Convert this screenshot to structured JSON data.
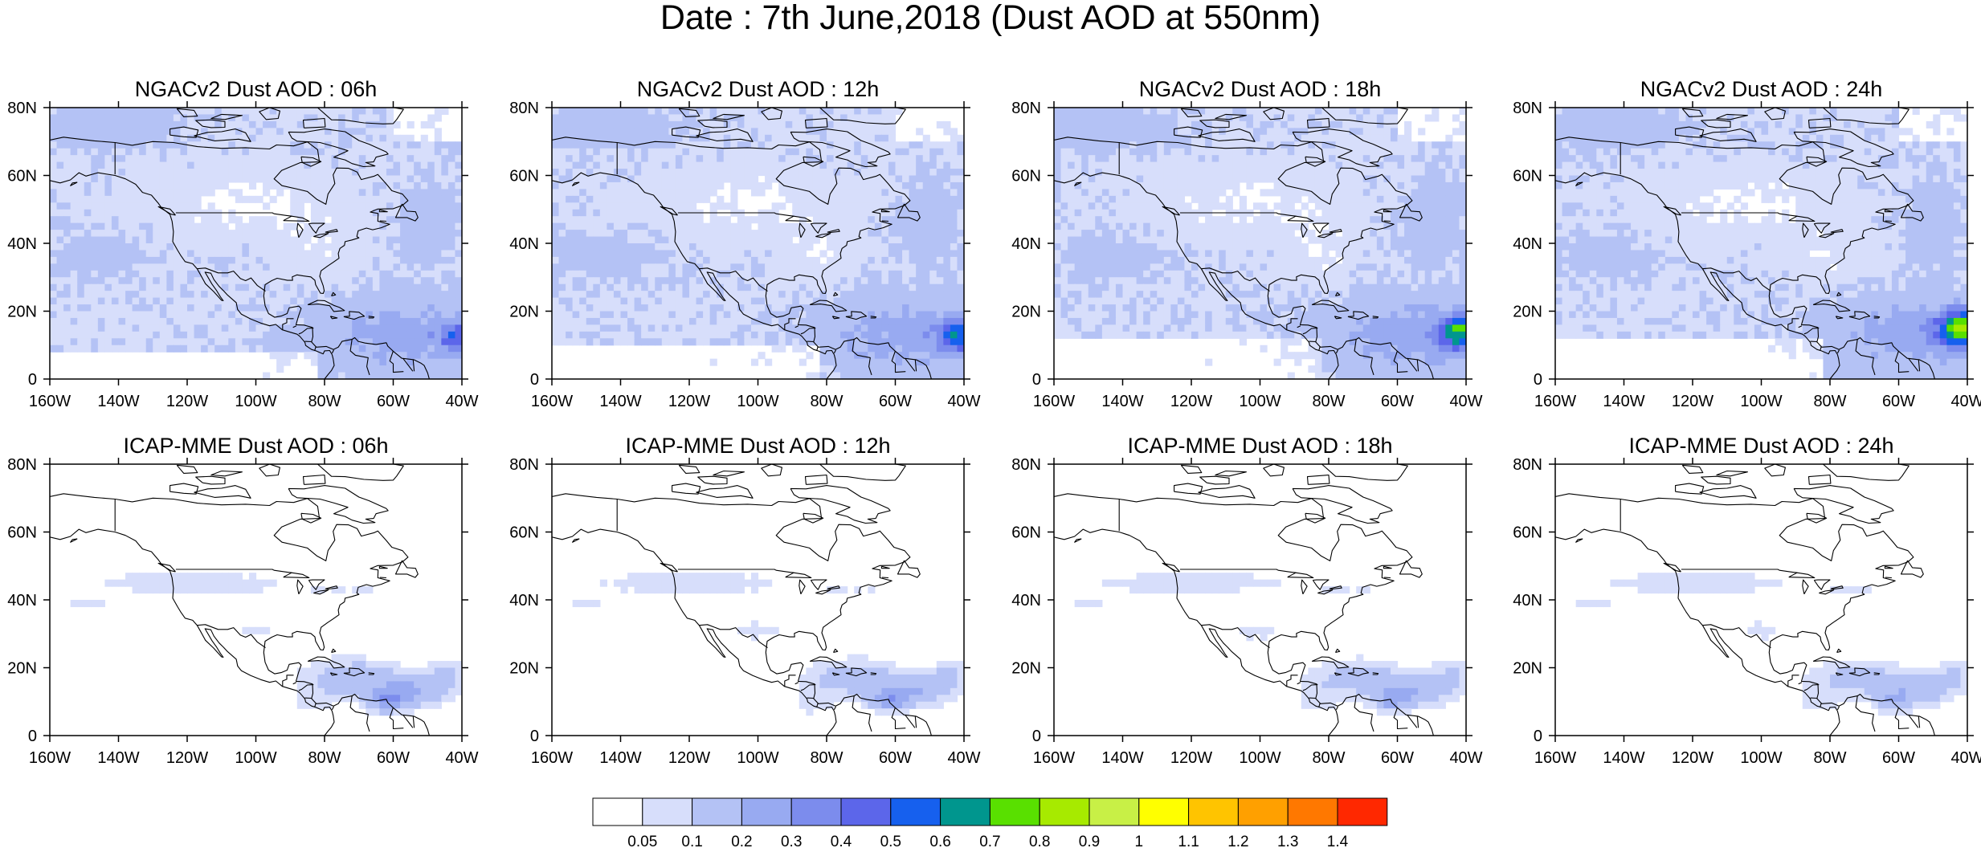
{
  "title": "Date : 7th June,2018 (Dust AOD at 550nm)",
  "panels": [
    {
      "title": "NGACv2 Dust AOD : 06h",
      "model": "ngac",
      "lead": 6
    },
    {
      "title": "NGACv2 Dust AOD : 12h",
      "model": "ngac",
      "lead": 12
    },
    {
      "title": "NGACv2 Dust AOD : 18h",
      "model": "ngac",
      "lead": 18
    },
    {
      "title": "NGACv2 Dust AOD : 24h",
      "model": "ngac",
      "lead": 24
    },
    {
      "title": "ICAP-MME Dust AOD : 06h",
      "model": "icap",
      "lead": 6
    },
    {
      "title": "ICAP-MME Dust AOD : 12h",
      "model": "icap",
      "lead": 12
    },
    {
      "title": "ICAP-MME Dust AOD : 18h",
      "model": "icap",
      "lead": 18
    },
    {
      "title": "ICAP-MME Dust AOD : 24h",
      "model": "icap",
      "lead": 24
    }
  ],
  "map": {
    "lon_range": [
      -160,
      -40
    ],
    "lat_range": [
      0,
      80
    ],
    "lon_ticks": [
      "160W",
      "140W",
      "120W",
      "100W",
      "80W",
      "60W",
      "40W"
    ],
    "lat_ticks": [
      "0",
      "20N",
      "40N",
      "60N",
      "80N"
    ]
  },
  "colorbar": {
    "levels": [
      "0.05",
      "0.1",
      "0.2",
      "0.3",
      "0.4",
      "0.5",
      "0.6",
      "0.7",
      "0.8",
      "0.9",
      "1",
      "1.1",
      "1.2",
      "1.3",
      "1.4"
    ],
    "colors": [
      "#ffffff",
      "#d7defb",
      "#b4c2f5",
      "#98aaf1",
      "#7c8ced",
      "#5c66ea",
      "#1660ee",
      "#00968e",
      "#59e000",
      "#a7ea00",
      "#c8f046",
      "#ffff00",
      "#ffc400",
      "#ffa000",
      "#ff7800",
      "#ff2800"
    ]
  },
  "chart_data": {
    "type": "heatmap",
    "title": "Date : 7th June,2018 (Dust AOD at 550nm)",
    "variable": "Dust AOD at 550nm",
    "date": "7th June,2018",
    "x_range": [
      -160,
      -40
    ],
    "y_range": [
      0,
      80
    ],
    "contour_levels": [
      0.05,
      0.1,
      0.2,
      0.3,
      0.4,
      0.5,
      0.6,
      0.7,
      0.8,
      0.9,
      1,
      1.1,
      1.2,
      1.3,
      1.4
    ],
    "panels": [
      {
        "title": "NGACv2 Dust AOD : 06h",
        "max_aod": 0.5,
        "max_lon": -42,
        "max_lat": 12
      },
      {
        "title": "NGACv2 Dust AOD : 12h",
        "max_aod": 0.7,
        "max_lon": -42,
        "max_lat": 13
      },
      {
        "title": "NGACv2 Dust AOD : 18h",
        "max_aod": 0.7,
        "max_lon": -43,
        "max_lat": 15
      },
      {
        "title": "NGACv2 Dust AOD : 24h",
        "max_aod": 0.7,
        "max_lon": -44,
        "max_lat": 14
      },
      {
        "title": "ICAP-MME Dust AOD : 06h",
        "max_aod": 0.4,
        "max_lon": -63,
        "max_lat": 10
      },
      {
        "title": "ICAP-MME Dust AOD : 12h",
        "max_aod": 0.4,
        "max_lon": -63,
        "max_lat": 10
      },
      {
        "title": "ICAP-MME Dust AOD : 18h",
        "max_aod": 0.3,
        "max_lon": -62,
        "max_lat": 11
      },
      {
        "title": "ICAP-MME Dust AOD : 24h",
        "max_aod": 0.3,
        "max_lon": -60,
        "max_lat": 11
      }
    ]
  }
}
